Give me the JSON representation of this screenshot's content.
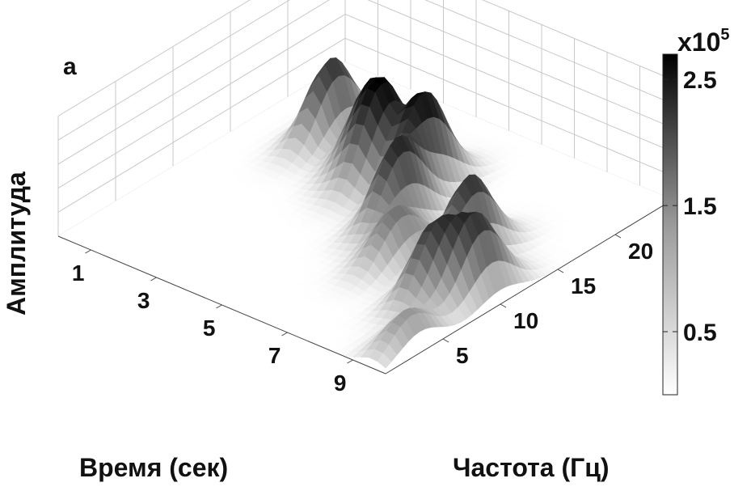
{
  "panel_label": "a",
  "chart_data": {
    "type": "surface",
    "xlabel": "Время (сек)",
    "ylabel": "Частота (Гц)",
    "zlabel": "Амплитуда",
    "x_ticks": [
      "1",
      "3",
      "5",
      "7",
      "9"
    ],
    "y_ticks": [
      "5",
      "10",
      "15",
      "20"
    ],
    "x_range": [
      0,
      10
    ],
    "y_range": [
      0,
      25
    ],
    "colormap": "grayscale (white = low, black = high)",
    "colorbar": {
      "multiplier_base": "x10",
      "multiplier_exp": "5",
      "ticks": [
        "0.5",
        "1.5",
        "2.5"
      ],
      "range": [
        0,
        2.7
      ]
    },
    "peaks": [
      {
        "time": 2.0,
        "frequency": 18.0,
        "amplitude": 2.2
      },
      {
        "time": 3.5,
        "frequency": 17.0,
        "amplitude": 1.8
      },
      {
        "time": 4.2,
        "frequency": 16.0,
        "amplitude": 2.4
      },
      {
        "time": 5.2,
        "frequency": 17.0,
        "amplitude": 2.6
      },
      {
        "time": 5.8,
        "frequency": 13.0,
        "amplitude": 2.3
      },
      {
        "time": 6.8,
        "frequency": 10.0,
        "amplitude": 1.4
      },
      {
        "time": 8.0,
        "frequency": 13.0,
        "amplitude": 2.2
      },
      {
        "time": 8.6,
        "frequency": 8.0,
        "amplitude": 1.9
      },
      {
        "time": 9.3,
        "frequency": 10.0,
        "amplitude": 2.0
      },
      {
        "time": 9.6,
        "frequency": 3.0,
        "amplitude": 1.0
      }
    ]
  }
}
